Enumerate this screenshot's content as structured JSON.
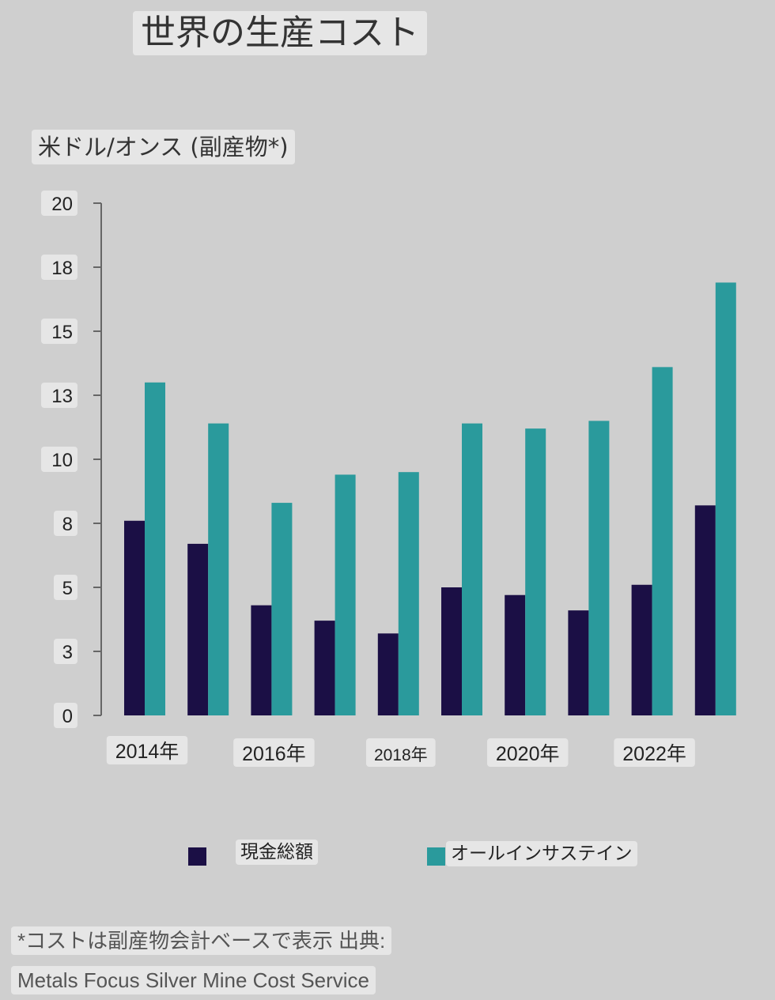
{
  "chart_data": {
    "type": "bar",
    "title": "世界の生産コスト",
    "ylabel": "米ドル/オンス (副産物*)",
    "xlabel": "",
    "ylim": [
      0,
      20
    ],
    "y_ticks": [
      {
        "value": 0,
        "label": "0"
      },
      {
        "value": 2.5,
        "label": "3"
      },
      {
        "value": 5,
        "label": "5"
      },
      {
        "value": 7.5,
        "label": "8"
      },
      {
        "value": 10,
        "label": "10"
      },
      {
        "value": 12.5,
        "label": "13"
      },
      {
        "value": 15,
        "label": "15"
      },
      {
        "value": 17.5,
        "label": "18"
      },
      {
        "value": 20,
        "label": "20"
      }
    ],
    "categories": [
      "2014",
      "2015",
      "2016",
      "2017",
      "2018",
      "2019",
      "2020",
      "2021",
      "2022",
      "2023"
    ],
    "x_tick_labels": [
      {
        "category_index": 0,
        "label": "2014年"
      },
      {
        "category_index": 2,
        "label": "2016年"
      },
      {
        "category_index": 4,
        "label": "2018年"
      },
      {
        "category_index": 6,
        "label": "2020年"
      },
      {
        "category_index": 8,
        "label": "2022年"
      }
    ],
    "series": [
      {
        "name": "現金総額",
        "color": "#1b0f45",
        "values": [
          7.6,
          6.7,
          4.3,
          3.7,
          3.2,
          5.0,
          4.7,
          4.1,
          5.1,
          8.2
        ]
      },
      {
        "name": "オールインサステイン",
        "color": "#2a9a9c",
        "values": [
          13.0,
          11.4,
          8.3,
          9.4,
          9.5,
          11.4,
          11.2,
          11.5,
          13.6,
          16.9
        ]
      }
    ],
    "legend_position": "bottom",
    "grid": false
  },
  "footnote": {
    "line1": "*コストは副産物会計ベースで表示 出典:",
    "line2": "Metals Focus Silver Mine Cost Service"
  }
}
